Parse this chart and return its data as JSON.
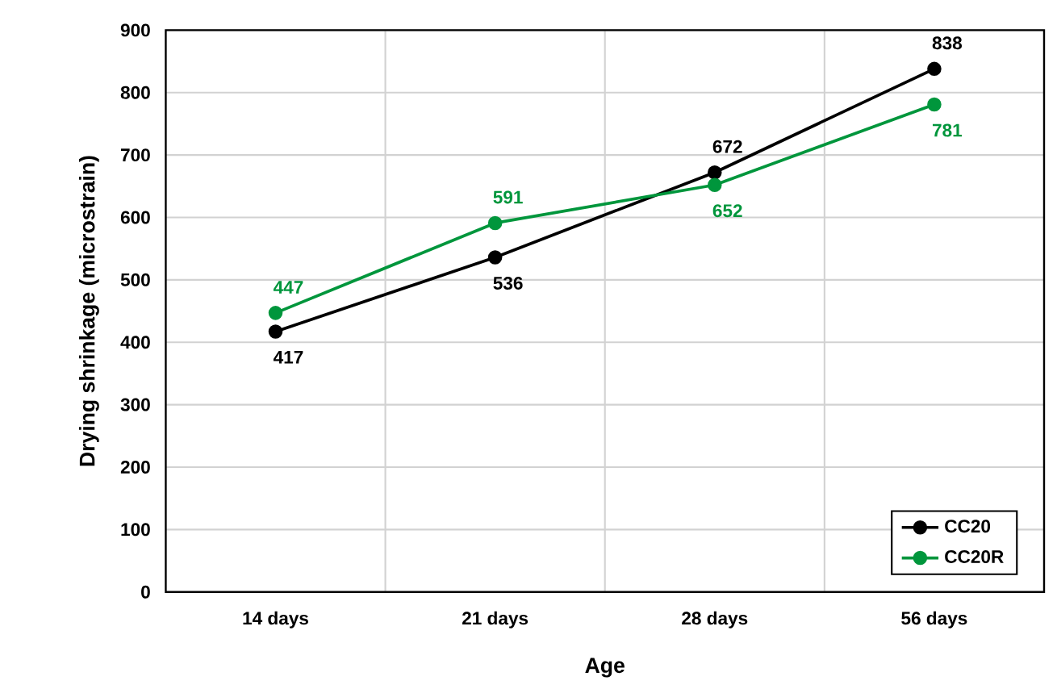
{
  "chart_data": {
    "type": "line",
    "xlabel": "Age",
    "ylabel": "Drying shrinkage (microstrain)",
    "categories": [
      "14 days",
      "21 days",
      "28 days",
      "56 days"
    ],
    "series": [
      {
        "name": "CC20",
        "color": "#000000",
        "values": [
          417,
          536,
          672,
          838
        ]
      },
      {
        "name": "CC20R",
        "color": "#00963c",
        "values": [
          447,
          591,
          652,
          781
        ]
      }
    ],
    "ylim": [
      0,
      900
    ],
    "yticks": [
      0,
      100,
      200,
      300,
      400,
      500,
      600,
      700,
      800,
      900
    ],
    "grid": true,
    "legend": "bottom right",
    "marker": "circle",
    "line_style": "solid",
    "data_labels": true
  }
}
